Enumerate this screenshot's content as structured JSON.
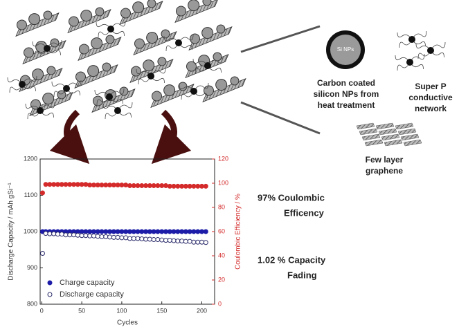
{
  "chart_data": {
    "type": "scatter",
    "xlabel": "Cycles",
    "ylabel": "Discharge Capacity / mAh gSi⁻¹",
    "y2label": "Coulombic Efficiency / %",
    "x": [
      1,
      5,
      10,
      15,
      20,
      25,
      30,
      35,
      40,
      45,
      50,
      55,
      60,
      65,
      70,
      75,
      80,
      85,
      90,
      95,
      100,
      105,
      110,
      115,
      120,
      125,
      130,
      135,
      140,
      145,
      150,
      155,
      160,
      165,
      170,
      175,
      180,
      185,
      190,
      195,
      200,
      205
    ],
    "series": [
      {
        "name": "Charge capacity",
        "color": "#1c1ca8",
        "marker": "filled",
        "axis": "y",
        "values": [
          1000,
          1000,
          1000,
          1000,
          1000,
          1000,
          1000,
          1000,
          1000,
          1000,
          1000,
          1000,
          1000,
          1000,
          1000,
          1000,
          1000,
          1000,
          1000,
          1000,
          1000,
          1000,
          1000,
          1000,
          1000,
          1000,
          1000,
          1000,
          1000,
          1000,
          1000,
          1000,
          1000,
          1000,
          1000,
          1000,
          1000,
          1000,
          1000,
          1000,
          1000,
          1000
        ]
      },
      {
        "name": "Discharge capacity",
        "color": "#2a2a6a",
        "marker": "open",
        "axis": "y",
        "values": [
          940,
          995,
          994,
          994,
          993,
          993,
          991,
          991,
          991,
          990,
          989,
          989,
          988,
          988,
          987,
          986,
          986,
          985,
          984,
          984,
          983,
          983,
          981,
          981,
          981,
          980,
          979,
          979,
          978,
          978,
          977,
          976,
          976,
          975,
          974,
          974,
          973,
          973,
          971,
          971,
          971,
          970
        ]
      },
      {
        "color": "#d42a2a",
        "marker": "filled",
        "axis": "y2",
        "values": [
          92,
          99,
          99,
          99,
          99,
          99,
          99,
          99,
          99,
          99,
          99,
          99,
          98.5,
          98.5,
          98.5,
          98.5,
          98.5,
          98.5,
          98.5,
          98.5,
          98.5,
          98.5,
          98,
          98,
          98,
          98,
          98,
          98,
          98,
          98,
          98,
          98,
          97.5,
          97.5,
          97.5,
          97.5,
          97.5,
          97.5,
          97.5,
          97.5,
          97.5,
          97.5
        ]
      }
    ],
    "xlim": [
      -2,
      216
    ],
    "xticks": [
      0,
      50,
      100,
      150,
      200
    ],
    "ylim": [
      800,
      1200
    ],
    "yticks": [
      800,
      900,
      1000,
      1100,
      1200
    ],
    "y2lim": [
      0,
      120
    ],
    "y2ticks": [
      0,
      20,
      40,
      60,
      80,
      100,
      120
    ],
    "y2color": "#d42a2a",
    "legend": "lower left",
    "annotations": [
      {
        "lines": [
          "97% Coulombic",
          "Efficency"
        ]
      },
      {
        "lines": [
          "1.02 % Capacity",
          "Fading"
        ]
      }
    ]
  },
  "diagram": {
    "particle_label": "Si NPs",
    "particle_caption": [
      "Carbon coated",
      "silicon NPs from",
      "heat treatment"
    ],
    "network_caption": [
      "Super P",
      "conductive",
      "network"
    ],
    "graphene_caption": [
      "Few layer",
      "graphene"
    ]
  }
}
